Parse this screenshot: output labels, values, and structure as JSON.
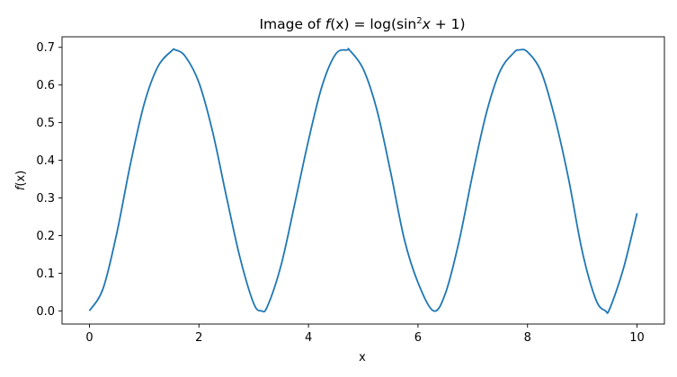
{
  "chart_data": {
    "type": "line",
    "title": {
      "prefix": "Image of ",
      "fx": "f",
      "fx_rest": "(x) = log(sin",
      "sup": "2",
      "x": "x",
      "suffix": " + 1)"
    },
    "xlabel": "x",
    "ylabel": {
      "f": "f",
      "rest": "(x)"
    },
    "xlim": [
      -0.5,
      10.5
    ],
    "ylim": [
      -0.035,
      0.728
    ],
    "xticks": [
      0,
      2,
      4,
      6,
      8,
      10
    ],
    "xtick_labels": [
      "0",
      "2",
      "4",
      "6",
      "8",
      "10"
    ],
    "yticks": [
      0.0,
      0.1,
      0.2,
      0.3,
      0.4,
      0.5,
      0.6,
      0.7
    ],
    "ytick_labels": [
      "0.0",
      "0.1",
      "0.2",
      "0.3",
      "0.4",
      "0.5",
      "0.6",
      "0.7"
    ],
    "grid": false,
    "color": "#1f77b4",
    "series": [
      {
        "x": [
          0.0,
          0.25,
          0.5,
          0.75,
          1.0,
          1.25,
          1.5,
          1.571,
          1.75,
          2.0,
          2.25,
          2.5,
          2.75,
          3.0,
          3.142,
          3.25,
          3.5,
          3.75,
          4.0,
          4.25,
          4.5,
          4.712,
          4.75,
          5.0,
          5.25,
          5.5,
          5.75,
          6.0,
          6.283,
          6.5,
          6.75,
          7.0,
          7.25,
          7.5,
          7.75,
          7.854,
          8.0,
          8.25,
          8.5,
          8.75,
          9.0,
          9.25,
          9.425,
          9.5,
          9.75,
          10.0
        ],
        "y": [
          0.0,
          0.0594,
          0.2064,
          0.391,
          0.5497,
          0.6487,
          0.6903,
          0.6931,
          0.6762,
          0.6063,
          0.4757,
          0.3048,
          0.1413,
          0.0197,
          0.0,
          0.0117,
          0.1213,
          0.2847,
          0.4528,
          0.5982,
          0.6826,
          0.6931,
          0.6926,
          0.6425,
          0.5337,
          0.3689,
          0.1903,
          0.0752,
          0.0,
          0.0462,
          0.1848,
          0.364,
          0.5262,
          0.6374,
          0.6858,
          0.6931,
          0.6879,
          0.6347,
          0.5121,
          0.3506,
          0.1578,
          0.0294,
          0.0,
          0.0052,
          0.1116,
          0.2595
        ]
      }
    ]
  }
}
